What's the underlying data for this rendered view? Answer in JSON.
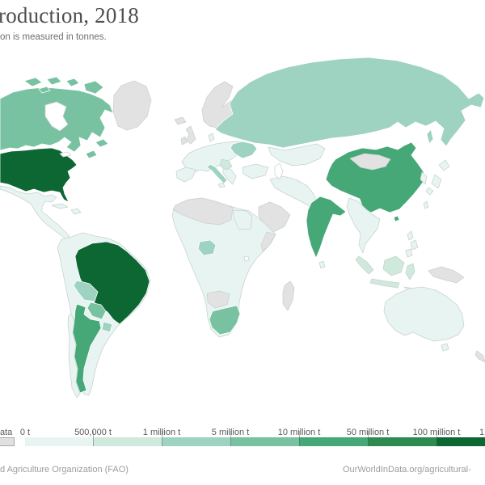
{
  "header": {
    "title": "roduction, 2018",
    "subtitle": "on is measured in tonnes."
  },
  "legend": {
    "nodata_label": "ata",
    "cut_label": "1",
    "segments": [
      {
        "label": "0 t",
        "level": "0-500k"
      },
      {
        "label": "500,000 t",
        "level": "500k-1m"
      },
      {
        "label": "1 million t",
        "level": "1m-5m"
      },
      {
        "label": "5 million t",
        "level": "5m-10m"
      },
      {
        "label": "10 million t",
        "level": "10m-50m"
      },
      {
        "label": "50 million t",
        "level": "50m-100m"
      },
      {
        "label": "100 million t",
        "level": "100m+"
      }
    ]
  },
  "footer": {
    "source": "d Agriculture Organization (FAO)",
    "link": "OurWorldInData.org/agricultural-"
  },
  "map": {
    "palette": {
      "no-data": "#e3e2e3",
      "0-500k": "#e8f4f2",
      "500k-1m": "#cfe9dd",
      "1m-5m": "#9fd3c1",
      "5m-10m": "#78c2a2",
      "10m-50m": "#45a876",
      "50m-100m": "#2e8b50",
      "100m+": "#0d6733"
    },
    "regions": [
      {
        "id": "canada",
        "name": "Canada",
        "level": "5m-10m"
      },
      {
        "id": "usa",
        "name": "United States",
        "level": "100m+"
      },
      {
        "id": "greenland",
        "name": "Greenland",
        "level": "no-data"
      },
      {
        "id": "mexico",
        "name": "Mexico & Central America",
        "level": "0-500k"
      },
      {
        "id": "caribbean",
        "name": "Caribbean",
        "level": "0-500k"
      },
      {
        "id": "south-america",
        "name": "South America (other)",
        "level": "0-500k"
      },
      {
        "id": "brazil",
        "name": "Brazil",
        "level": "100m+"
      },
      {
        "id": "bolivia",
        "name": "Bolivia",
        "level": "1m-5m"
      },
      {
        "id": "paraguay",
        "name": "Paraguay",
        "level": "5m-10m"
      },
      {
        "id": "uruguay",
        "name": "Uruguay",
        "level": "1m-5m"
      },
      {
        "id": "argentina",
        "name": "Argentina",
        "level": "10m-50m"
      },
      {
        "id": "chile",
        "name": "Chile",
        "level": "0-500k"
      },
      {
        "id": "iceland",
        "name": "Iceland",
        "level": "no-data"
      },
      {
        "id": "uk",
        "name": "United Kingdom",
        "level": "no-data"
      },
      {
        "id": "ireland",
        "name": "Ireland",
        "level": "no-data"
      },
      {
        "id": "scandinavia",
        "name": "Scandinavia",
        "level": "no-data"
      },
      {
        "id": "europe",
        "name": "Europe (other)",
        "level": "0-500k"
      },
      {
        "id": "italy",
        "name": "Italy",
        "level": "1m-5m"
      },
      {
        "id": "ukraine",
        "name": "Ukraine",
        "level": "1m-5m"
      },
      {
        "id": "hungary-serbia",
        "name": "Hungary/Serbia",
        "level": "500k-1m"
      },
      {
        "id": "russia",
        "name": "Russia",
        "level": "1m-5m"
      },
      {
        "id": "kazakhstan",
        "name": "Central Asia",
        "level": "0-500k"
      },
      {
        "id": "turkey",
        "name": "Turkey",
        "level": "0-500k"
      },
      {
        "id": "middle-east",
        "name": "Middle East",
        "level": "0-500k"
      },
      {
        "id": "arabia",
        "name": "Arabian Peninsula",
        "level": "no-data"
      },
      {
        "id": "africa",
        "name": "Africa (other)",
        "level": "0-500k"
      },
      {
        "id": "north-africa",
        "name": "North Africa",
        "level": "no-data"
      },
      {
        "id": "egypt",
        "name": "Egypt",
        "level": "0-500k"
      },
      {
        "id": "nigeria",
        "name": "Nigeria",
        "level": "1m-5m"
      },
      {
        "id": "somalia",
        "name": "Somalia",
        "level": "no-data"
      },
      {
        "id": "south-africa",
        "name": "South Africa",
        "level": "5m-10m"
      },
      {
        "id": "namibia-botswana",
        "name": "Namibia/Botswana",
        "level": "no-data"
      },
      {
        "id": "madagascar",
        "name": "Madagascar",
        "level": "no-data"
      },
      {
        "id": "india",
        "name": "India",
        "level": "10m-50m"
      },
      {
        "id": "sri-lanka",
        "name": "Sri Lanka",
        "level": "0-500k"
      },
      {
        "id": "china",
        "name": "China",
        "level": "10m-50m"
      },
      {
        "id": "taiwan",
        "name": "Taiwan",
        "level": "0-500k"
      },
      {
        "id": "mongolia",
        "name": "Mongolia",
        "level": "no-data"
      },
      {
        "id": "se-asia",
        "name": "Southeast Asia",
        "level": "0-500k"
      },
      {
        "id": "indonesia",
        "name": "Indonesia",
        "level": "500k-1m"
      },
      {
        "id": "new-guinea",
        "name": "New Guinea",
        "level": "no-data"
      },
      {
        "id": "philippines",
        "name": "Philippines",
        "level": "0-500k"
      },
      {
        "id": "japan",
        "name": "Japan",
        "level": "0-500k"
      },
      {
        "id": "korea",
        "name": "Korea",
        "level": "0-500k"
      },
      {
        "id": "australia",
        "name": "Australia",
        "level": "0-500k"
      },
      {
        "id": "new-zealand",
        "name": "New Zealand",
        "level": "no-data"
      }
    ]
  }
}
